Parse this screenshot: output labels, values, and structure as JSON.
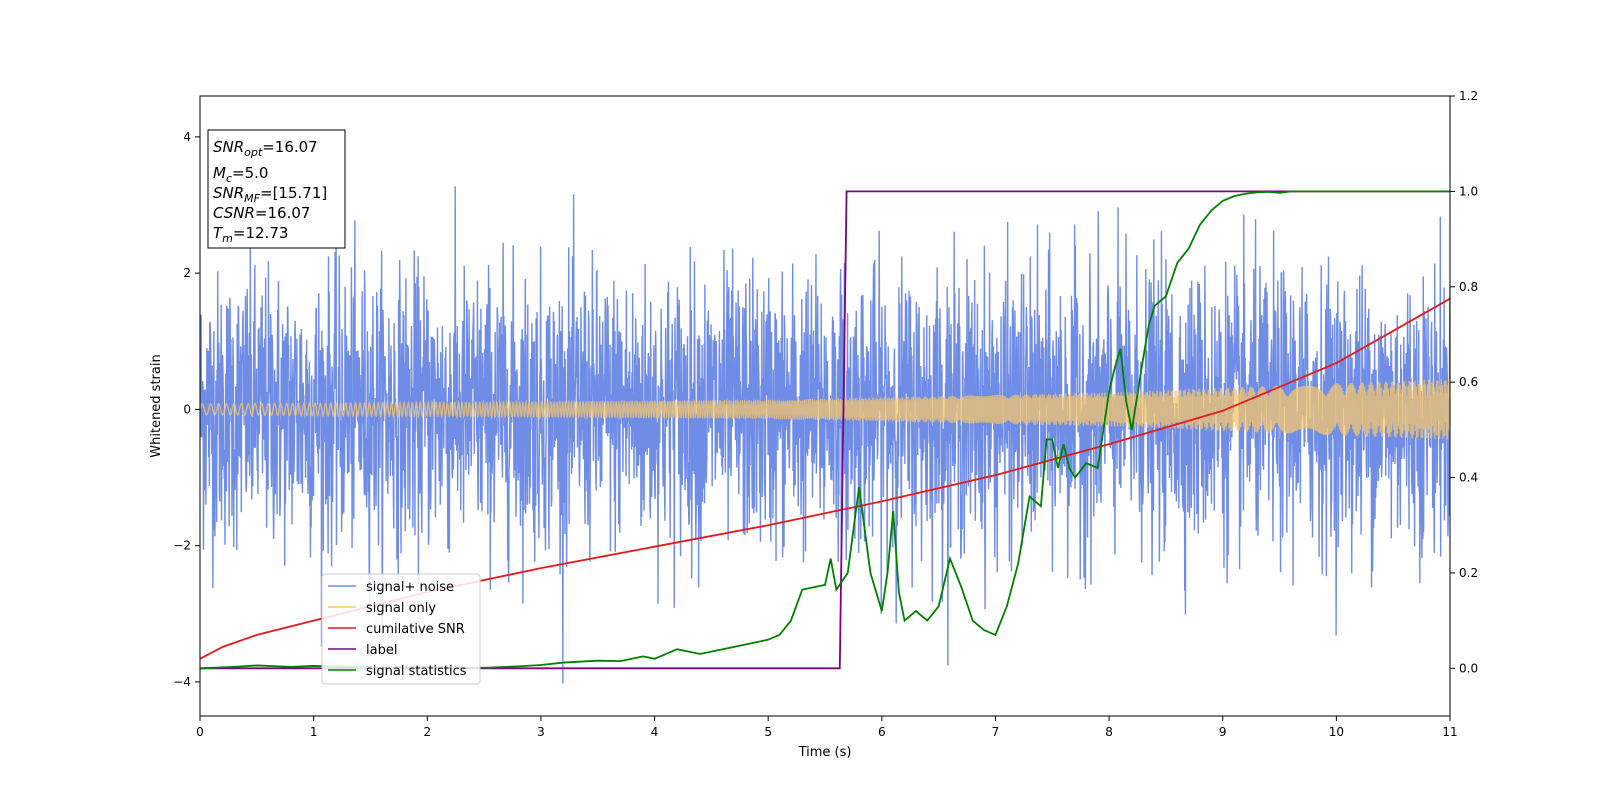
{
  "chart_data": {
    "type": "line",
    "xlabel": "Time (s)",
    "ylabel": "Whitened strain",
    "xlim": [
      0,
      11
    ],
    "ylim_left": [
      -4.5,
      4.6
    ],
    "ylim_right": [
      -0.1,
      1.2
    ],
    "x_ticks": [
      "0",
      "1",
      "2",
      "3",
      "4",
      "5",
      "6",
      "7",
      "8",
      "9",
      "10",
      "11"
    ],
    "y_left_ticks": [
      "−4",
      "−2",
      "0",
      "2",
      "4"
    ],
    "y_right_ticks": [
      "0.0",
      "0.2",
      "0.4",
      "0.6",
      "0.8",
      "1.0",
      "1.2"
    ],
    "grid": false,
    "legend_position": "lower-left",
    "info_box": {
      "snr_opt": "=16.07",
      "mc": "=5.0",
      "snr_mf": "=[15.71]",
      "csnr": "=16.07",
      "tm": "=12.73"
    },
    "series": [
      {
        "name": "signal+ noise",
        "color": "#6f8de6",
        "axis": "left",
        "description_values": {
          "mean": 0,
          "std": 1.0,
          "max_abs": 4.2
        }
      },
      {
        "name": "signal only",
        "color": "#f5c56b",
        "axis": "left",
        "envelope": {
          "x": [
            0,
            5,
            8,
            11
          ],
          "amplitude": [
            0.08,
            0.14,
            0.25,
            0.45
          ]
        }
      },
      {
        "name": "cumilative SNR",
        "color": "#e41a1c",
        "axis": "right",
        "x": [
          0,
          0.2,
          0.5,
          1,
          2,
          3,
          4,
          5,
          5.6,
          6,
          7,
          8,
          9,
          10,
          11
        ],
        "y": [
          0.02,
          0.045,
          0.07,
          0.1,
          0.16,
          0.21,
          0.255,
          0.3,
          0.33,
          0.35,
          0.405,
          0.47,
          0.54,
          0.64,
          0.775
        ]
      },
      {
        "name": "label",
        "color": "#800080",
        "axis": "right",
        "x": [
          0,
          5.63,
          5.69,
          11
        ],
        "y": [
          0.0,
          0.0,
          1.0,
          1.0
        ]
      },
      {
        "name": "signal statistics",
        "color": "#008000",
        "axis": "right",
        "x": [
          0,
          0.3,
          0.5,
          0.8,
          1.0,
          1.5,
          2.0,
          2.5,
          2.8,
          3.0,
          3.2,
          3.5,
          3.7,
          3.9,
          4.0,
          4.2,
          4.4,
          4.6,
          4.8,
          5.0,
          5.1,
          5.2,
          5.3,
          5.4,
          5.5,
          5.55,
          5.6,
          5.7,
          5.8,
          5.9,
          6.0,
          6.05,
          6.1,
          6.15,
          6.2,
          6.3,
          6.4,
          6.5,
          6.6,
          6.7,
          6.8,
          6.85,
          6.9,
          7.0,
          7.1,
          7.2,
          7.3,
          7.4,
          7.45,
          7.5,
          7.55,
          7.6,
          7.65,
          7.7,
          7.8,
          7.9,
          8.0,
          8.05,
          8.1,
          8.15,
          8.2,
          8.3,
          8.35,
          8.4,
          8.5,
          8.6,
          8.7,
          8.8,
          8.9,
          9.0,
          9.1,
          9.2,
          9.3,
          9.4,
          9.5,
          9.6,
          9.7,
          9.8,
          9.9,
          10.0,
          10.5,
          11.0
        ],
        "y": [
          0.0,
          0.003,
          0.006,
          0.003,
          0.005,
          0.002,
          0.003,
          0.001,
          0.004,
          0.007,
          0.012,
          0.016,
          0.015,
          0.025,
          0.02,
          0.04,
          0.03,
          0.04,
          0.05,
          0.06,
          0.07,
          0.1,
          0.165,
          0.17,
          0.175,
          0.23,
          0.165,
          0.2,
          0.38,
          0.2,
          0.12,
          0.2,
          0.33,
          0.16,
          0.1,
          0.12,
          0.1,
          0.13,
          0.23,
          0.17,
          0.1,
          0.09,
          0.08,
          0.07,
          0.13,
          0.22,
          0.36,
          0.34,
          0.48,
          0.48,
          0.42,
          0.47,
          0.42,
          0.4,
          0.43,
          0.42,
          0.58,
          0.63,
          0.67,
          0.56,
          0.5,
          0.65,
          0.72,
          0.76,
          0.78,
          0.85,
          0.88,
          0.93,
          0.96,
          0.98,
          0.99,
          0.995,
          0.998,
          0.999,
          0.997,
          1.0,
          1.0,
          1.0,
          1.0,
          1.0,
          1.0,
          1.0
        ]
      }
    ]
  }
}
